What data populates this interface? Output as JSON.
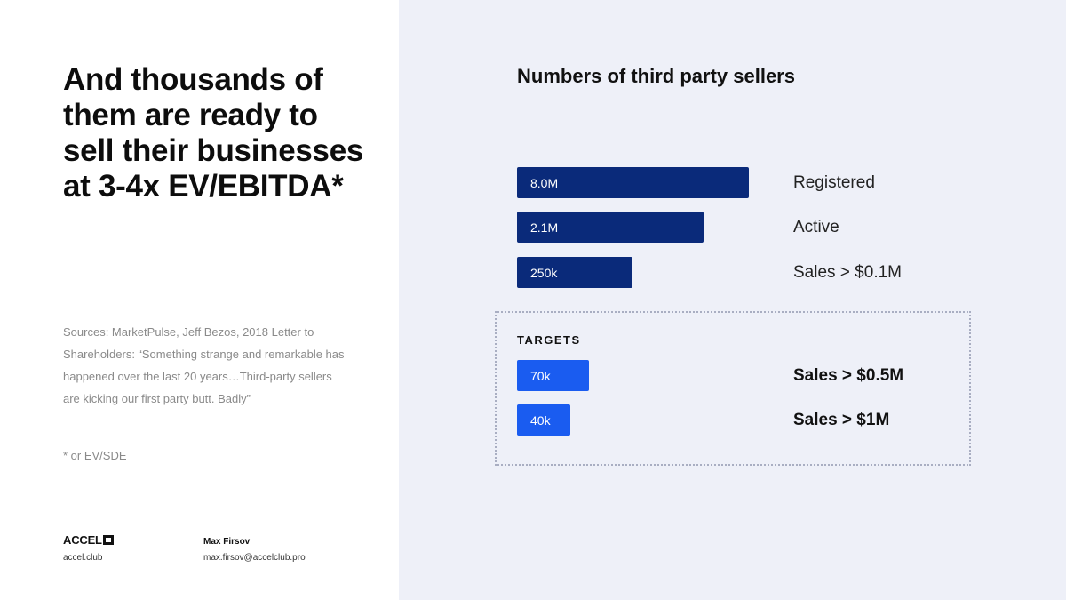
{
  "headline": "And thousands of them are ready to sell their businesses at 3-4x EV/EBITDA*",
  "sources": "Sources: MarketPulse, Jeff Bezos, 2018 Letter to Shareholders: “Something strange and remarkable has happened over the last 20 years…Third-party sellers are kicking our first party butt. Badly”",
  "footnote": "* or EV/SDE",
  "footer": {
    "brand": "ACCEL",
    "brand_url": "accel.club",
    "author_name": "Max Firsov",
    "author_email": "max.firsov@accelclub.pro"
  },
  "colors": {
    "dark_bar": "#0a2a7a",
    "target_bar": "#1a5cf0",
    "panel_bg": "#eef0f8"
  },
  "chart_data": {
    "type": "bar",
    "orientation": "horizontal",
    "title": "Numbers of third party sellers",
    "scale": "log",
    "categories": [
      "Registered",
      "Active",
      "Sales > $0.1M",
      "Sales > $0.5M",
      "Sales > $1M"
    ],
    "values": [
      8000000,
      2100000,
      250000,
      70000,
      40000
    ],
    "value_labels": [
      "8.0M",
      "2.1M",
      "250k",
      "70k",
      "40k"
    ],
    "group_label": "TARGETS",
    "target_categories": [
      "Sales > $0.5M",
      "Sales > $1M"
    ]
  }
}
